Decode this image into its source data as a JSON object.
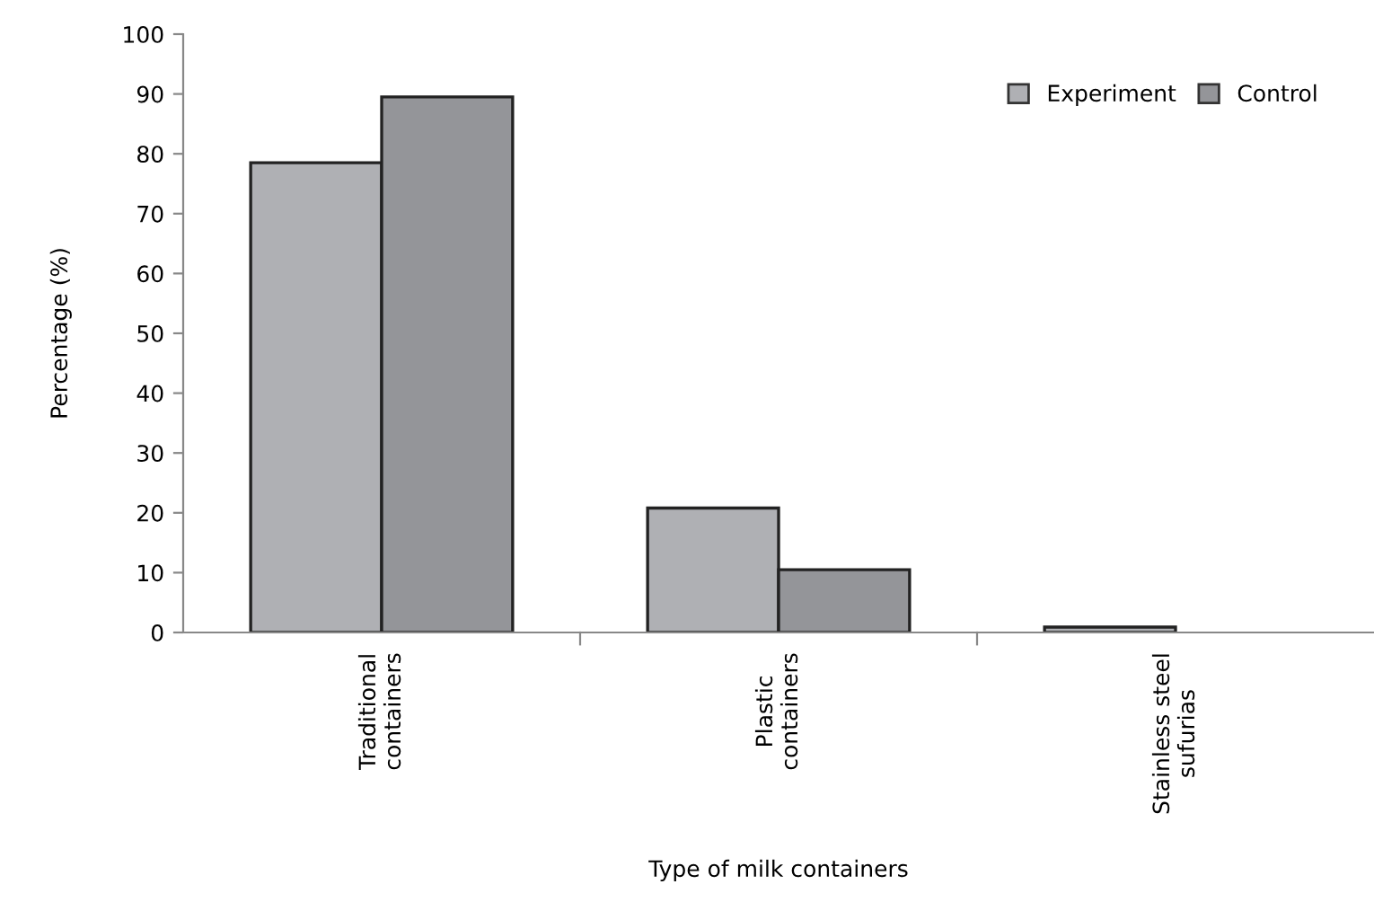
{
  "chart_data": {
    "type": "bar",
    "xlabel": "Type of milk containers",
    "ylabel": "Percentage (%)",
    "categories": [
      "Traditional\ncontainers",
      "Plastic\ncontainers",
      "Stainless steel\nsufurias"
    ],
    "series": [
      {
        "name": "Experiment",
        "color": "#afb0b4",
        "values": [
          78.5,
          20.8,
          0.9
        ]
      },
      {
        "name": "Control",
        "color": "#949599",
        "values": [
          89.5,
          10.5,
          null
        ]
      }
    ],
    "ylim": [
      0,
      100
    ],
    "yticks": [
      0,
      10,
      20,
      30,
      40,
      50,
      60,
      70,
      80,
      90,
      100
    ],
    "grid": false,
    "legend": "top right"
  }
}
